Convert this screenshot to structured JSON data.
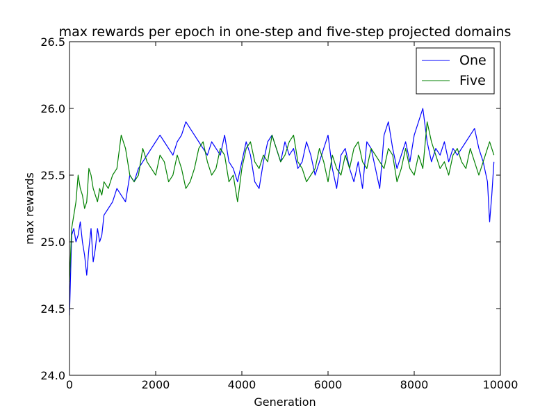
{
  "chart_data": {
    "type": "line",
    "title": "max rewards per epoch in one-step and five-step projected domains",
    "xlabel": "Generation",
    "ylabel": "max rewards",
    "xlim": [
      0,
      10000
    ],
    "ylim": [
      24.0,
      26.5
    ],
    "xticks": [
      0,
      2000,
      4000,
      6000,
      8000,
      10000
    ],
    "xtick_labels": [
      "0",
      "2000",
      "4000",
      "6000",
      "8000",
      "10000"
    ],
    "yticks": [
      24.0,
      24.5,
      25.0,
      25.5,
      26.0,
      26.5
    ],
    "ytick_labels": [
      "24.0",
      "24.5",
      "25.0",
      "25.5",
      "26.0",
      "26.5"
    ],
    "grid": false,
    "legend_position": "top-right",
    "series": [
      {
        "name": "One",
        "color": "#0000ff",
        "x": [
          0,
          50,
          100,
          150,
          200,
          250,
          300,
          350,
          400,
          450,
          500,
          550,
          600,
          650,
          700,
          750,
          800,
          900,
          1000,
          1100,
          1200,
          1300,
          1400,
          1500,
          1600,
          1700,
          1800,
          1900,
          2000,
          2100,
          2200,
          2300,
          2400,
          2500,
          2600,
          2700,
          2800,
          2900,
          3000,
          3100,
          3200,
          3300,
          3400,
          3500,
          3600,
          3700,
          3800,
          3900,
          4000,
          4100,
          4200,
          4300,
          4400,
          4500,
          4600,
          4700,
          4800,
          4900,
          5000,
          5100,
          5200,
          5300,
          5400,
          5500,
          5600,
          5700,
          5800,
          5900,
          6000,
          6100,
          6200,
          6300,
          6400,
          6500,
          6600,
          6700,
          6800,
          6900,
          7000,
          7100,
          7200,
          7300,
          7400,
          7500,
          7600,
          7700,
          7800,
          7900,
          8000,
          8100,
          8200,
          8300,
          8400,
          8500,
          8600,
          8700,
          8800,
          8900,
          9000,
          9100,
          9200,
          9300,
          9400,
          9500,
          9600,
          9700,
          9750,
          9800,
          9850
        ],
        "y": [
          24.45,
          25.05,
          25.1,
          25.0,
          25.05,
          25.15,
          25.0,
          24.9,
          24.75,
          24.95,
          25.1,
          24.85,
          24.95,
          25.1,
          25.0,
          25.05,
          25.2,
          25.25,
          25.3,
          25.4,
          25.35,
          25.3,
          25.5,
          25.45,
          25.55,
          25.6,
          25.65,
          25.7,
          25.75,
          25.8,
          25.75,
          25.7,
          25.65,
          25.75,
          25.8,
          25.9,
          25.85,
          25.8,
          25.75,
          25.7,
          25.65,
          25.75,
          25.7,
          25.65,
          25.8,
          25.6,
          25.55,
          25.45,
          25.6,
          25.75,
          25.65,
          25.45,
          25.4,
          25.6,
          25.75,
          25.8,
          25.7,
          25.6,
          25.75,
          25.65,
          25.7,
          25.55,
          25.6,
          25.75,
          25.65,
          25.5,
          25.6,
          25.7,
          25.8,
          25.55,
          25.4,
          25.65,
          25.7,
          25.55,
          25.45,
          25.6,
          25.4,
          25.75,
          25.7,
          25.55,
          25.4,
          25.8,
          25.9,
          25.7,
          25.55,
          25.65,
          25.75,
          25.6,
          25.8,
          25.9,
          26.0,
          25.75,
          25.6,
          25.7,
          25.65,
          25.75,
          25.6,
          25.7,
          25.65,
          25.7,
          25.75,
          25.8,
          25.85,
          25.7,
          25.6,
          25.45,
          25.15,
          25.35,
          25.6
        ]
      },
      {
        "name": "Five",
        "color": "#008000",
        "x": [
          0,
          50,
          100,
          150,
          200,
          250,
          300,
          350,
          400,
          450,
          500,
          550,
          600,
          650,
          700,
          750,
          800,
          900,
          1000,
          1100,
          1200,
          1300,
          1400,
          1500,
          1600,
          1700,
          1800,
          1900,
          2000,
          2100,
          2200,
          2300,
          2400,
          2500,
          2600,
          2700,
          2800,
          2900,
          3000,
          3100,
          3200,
          3300,
          3400,
          3500,
          3600,
          3700,
          3800,
          3900,
          4000,
          4100,
          4200,
          4300,
          4400,
          4500,
          4600,
          4700,
          4800,
          4900,
          5000,
          5100,
          5200,
          5300,
          5400,
          5500,
          5600,
          5700,
          5800,
          5900,
          6000,
          6100,
          6200,
          6300,
          6400,
          6500,
          6600,
          6700,
          6800,
          6900,
          7000,
          7100,
          7200,
          7300,
          7400,
          7500,
          7600,
          7700,
          7800,
          7900,
          8000,
          8100,
          8200,
          8300,
          8400,
          8500,
          8600,
          8700,
          8800,
          8900,
          9000,
          9100,
          9200,
          9300,
          9400,
          9500,
          9600,
          9700,
          9750,
          9800,
          9850
        ],
        "y": [
          24.7,
          25.1,
          25.2,
          25.3,
          25.5,
          25.4,
          25.35,
          25.25,
          25.3,
          25.55,
          25.5,
          25.4,
          25.35,
          25.3,
          25.4,
          25.35,
          25.45,
          25.4,
          25.5,
          25.55,
          25.8,
          25.7,
          25.5,
          25.45,
          25.5,
          25.7,
          25.6,
          25.55,
          25.5,
          25.65,
          25.6,
          25.45,
          25.5,
          25.65,
          25.55,
          25.4,
          25.45,
          25.55,
          25.7,
          25.75,
          25.6,
          25.5,
          25.55,
          25.7,
          25.65,
          25.45,
          25.5,
          25.3,
          25.55,
          25.7,
          25.75,
          25.6,
          25.55,
          25.65,
          25.6,
          25.8,
          25.7,
          25.6,
          25.65,
          25.75,
          25.8,
          25.6,
          25.55,
          25.45,
          25.5,
          25.55,
          25.7,
          25.6,
          25.45,
          25.65,
          25.55,
          25.5,
          25.65,
          25.55,
          25.7,
          25.75,
          25.6,
          25.55,
          25.7,
          25.65,
          25.6,
          25.55,
          25.7,
          25.65,
          25.45,
          25.55,
          25.7,
          25.55,
          25.5,
          25.65,
          25.55,
          25.9,
          25.75,
          25.65,
          25.55,
          25.6,
          25.5,
          25.65,
          25.7,
          25.6,
          25.55,
          25.7,
          25.6,
          25.5,
          25.6,
          25.7,
          25.75,
          25.7,
          25.65
        ]
      }
    ]
  }
}
